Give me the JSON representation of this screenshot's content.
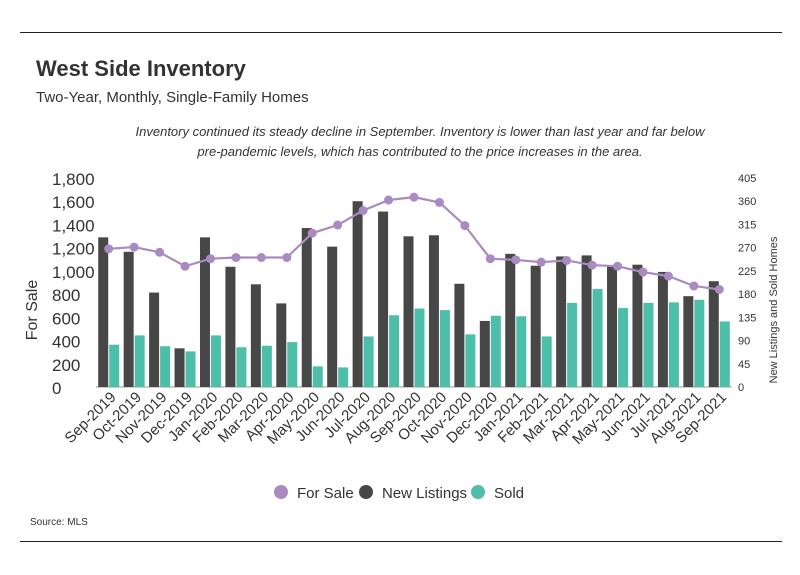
{
  "header": {
    "title": "West Side Inventory",
    "subtitle": "Two-Year, Monthly, Single-Family Homes",
    "annotation_line1": "Inventory continued its steady decline in September. Inventory is lower than last year and far below",
    "annotation_line2": "pre-pandemic levels, which has contributed to the price increases in the area."
  },
  "footer": {
    "source": "Source:  MLS"
  },
  "colors": {
    "for_sale": "#a98bc1",
    "new_listings": "#474747",
    "sold": "#4dbfa8"
  },
  "chart_data": {
    "type": "bar",
    "combo": "bars + line",
    "categories": [
      "Sep-2019",
      "Oct-2019",
      "Nov-2019",
      "Dec-2019",
      "Jan-2020",
      "Feb-2020",
      "Mar-2020",
      "Apr-2020",
      "May-2020",
      "Jun-2020",
      "Jul-2020",
      "Aug-2020",
      "Sep-2020",
      "Oct-2020",
      "Nov-2020",
      "Dec-2020",
      "Jan-2021",
      "Feb-2021",
      "Mar-2021",
      "Apr-2021",
      "May-2021",
      "Jun-2021",
      "Jul-2021",
      "Aug-2021",
      "Sep-2021"
    ],
    "ylabel": "For Sale",
    "y2label": "New Listings and Sold Homes",
    "ylim": [
      0,
      1800
    ],
    "y2lim": [
      0,
      405
    ],
    "y_ticks": [
      "0",
      "200",
      "400",
      "600",
      "800",
      "1,000",
      "1,200",
      "1,400",
      "1,600",
      "1,800"
    ],
    "y2_ticks": [
      "0",
      "45",
      "90",
      "135",
      "180",
      "225",
      "270",
      "315",
      "360",
      "405"
    ],
    "legend_position": "bottom",
    "series": [
      {
        "name": "For Sale",
        "type": "line",
        "axis": "left",
        "values": [
          1190,
          1205,
          1160,
          1040,
          1105,
          1115,
          1115,
          1115,
          1325,
          1395,
          1520,
          1610,
          1635,
          1590,
          1390,
          1105,
          1095,
          1075,
          1090,
          1050,
          1040,
          990,
          955,
          870,
          840
        ]
      },
      {
        "name": "New Listings",
        "type": "bar",
        "axis": "right",
        "values": [
          290,
          262,
          183,
          75,
          290,
          233,
          199,
          162,
          308,
          272,
          360,
          340,
          292,
          294,
          200,
          128,
          258,
          235,
          253,
          255,
          235,
          237,
          223,
          176,
          205
        ]
      },
      {
        "name": "Sold",
        "type": "bar",
        "axis": "right",
        "values": [
          82,
          100,
          79,
          69,
          100,
          77,
          80,
          87,
          40,
          38,
          98,
          139,
          152,
          149,
          102,
          138,
          137,
          98,
          163,
          190,
          153,
          163,
          164,
          169,
          127
        ]
      }
    ]
  }
}
